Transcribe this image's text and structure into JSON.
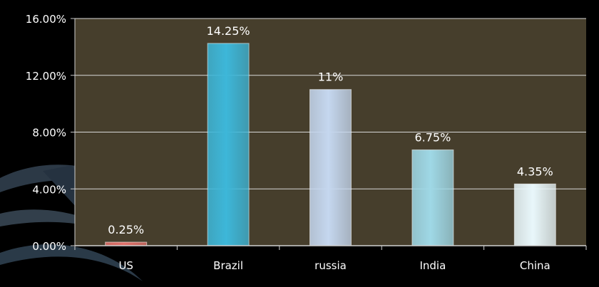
{
  "chart_data": {
    "type": "bar",
    "categories": [
      "US",
      "Brazil",
      "russia",
      "India",
      "China"
    ],
    "values": [
      0.25,
      14.25,
      11,
      6.75,
      4.35
    ],
    "data_labels": [
      "0.25%",
      "14.25%",
      "11%",
      "6.75%",
      "4.35%"
    ],
    "bar_colors": [
      "#e0706a",
      "#3db7d9",
      "#c5d7ef",
      "#9fd8e6",
      "#e9f7fb"
    ],
    "yticks": [
      0,
      4,
      8,
      12,
      16
    ],
    "ytick_labels": [
      "0.00%",
      "4.00%",
      "8.00%",
      "12.00%",
      "16.00%"
    ],
    "ylim": [
      0,
      16
    ],
    "grid": true,
    "plot_background": "#463e2c",
    "gridline_color": "#d8d8d8"
  }
}
